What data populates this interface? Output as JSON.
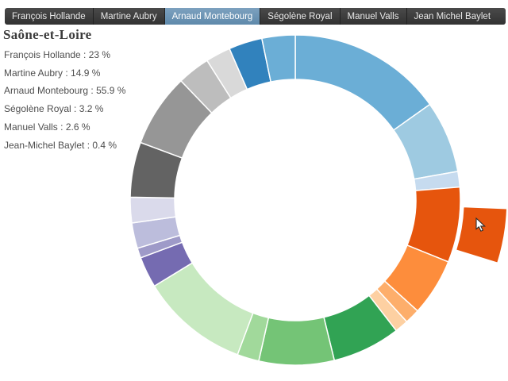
{
  "title": "Saône-et-Loire",
  "tabs": {
    "selected_index": 2,
    "items": [
      "François Hollande",
      "Martine Aubry",
      "Arnaud Montebourg",
      "Ségolène Royal",
      "Manuel Valls",
      "Jean Michel Baylet"
    ]
  },
  "stats": {
    "items": [
      {
        "name": "François Hollande",
        "value": "23 %"
      },
      {
        "name": "Martine Aubry",
        "value": "14.9 %"
      },
      {
        "name": "Arnaud Montebourg",
        "value": "55.9 %"
      },
      {
        "name": "Ségolène Royal",
        "value": "3.2 %"
      },
      {
        "name": "Manuel Valls",
        "value": "2.6 %"
      },
      {
        "name": "Jean-Michel Baylet",
        "value": "0.4 %"
      }
    ],
    "separator": " : "
  },
  "ui_colors": {
    "tabbar_bg": "#3a3a3a",
    "selected_tab_bg": "#6d93b2",
    "title_color": "#3b3b3b",
    "stats_text_color": "#4e4e4e"
  },
  "chart_data": {
    "type": "donut",
    "title": "Saône-et-Loire",
    "legend_position": "top-left",
    "palette_hint": "d3 category20c (4 shades per color family)",
    "series": [
      {
        "name": "François Hollande",
        "value": 23,
        "unit": "%",
        "color_family": "blue"
      },
      {
        "name": "Martine Aubry",
        "value": 14.9,
        "unit": "%",
        "color_family": "gray"
      },
      {
        "name": "Arnaud Montebourg",
        "value": 55.9,
        "unit": "%",
        "color_family": "orange"
      },
      {
        "name": "Ségolène Royal",
        "value": 3.2,
        "unit": "%",
        "color_family": "green"
      },
      {
        "name": "Manuel Valls",
        "value": 2.6,
        "unit": "%",
        "color_family": "purple"
      },
      {
        "name": "Jean-Michel Baylet",
        "value": 0.4,
        "unit": "%",
        "color_family": "none-visible"
      }
    ],
    "angles_note": "degrees clockwise from 12 o'clock",
    "ring_segments": [
      {
        "start_deg": 0.0,
        "end_deg": 54.6,
        "color": "#6baed6"
      },
      {
        "start_deg": 54.6,
        "end_deg": 80.0,
        "color": "#9ecae1"
      },
      {
        "start_deg": 80.0,
        "end_deg": 85.5,
        "color": "#c6dbef"
      },
      {
        "start_deg": 85.5,
        "end_deg": 112.0,
        "color": "#e6550d"
      },
      {
        "start_deg": 112.0,
        "end_deg": 132.2,
        "color": "#fd8d3c"
      },
      {
        "start_deg": 132.2,
        "end_deg": 137.5,
        "color": "#fdae6b"
      },
      {
        "start_deg": 137.5,
        "end_deg": 142.3,
        "color": "#fdd0a2"
      },
      {
        "start_deg": 142.3,
        "end_deg": 166.3,
        "color": "#31a354"
      },
      {
        "start_deg": 166.3,
        "end_deg": 192.8,
        "color": "#74c476"
      },
      {
        "start_deg": 192.8,
        "end_deg": 200.5,
        "color": "#a1d99b"
      },
      {
        "start_deg": 200.5,
        "end_deg": 238.6,
        "color": "#c7e9c0"
      },
      {
        "start_deg": 238.6,
        "end_deg": 249.5,
        "color": "#756bb1"
      },
      {
        "start_deg": 249.5,
        "end_deg": 253.0,
        "color": "#9e9ac8"
      },
      {
        "start_deg": 253.0,
        "end_deg": 262.0,
        "color": "#bcbddc"
      },
      {
        "start_deg": 262.0,
        "end_deg": 271.0,
        "color": "#dadaeb"
      },
      {
        "start_deg": 271.0,
        "end_deg": 290.4,
        "color": "#636363"
      },
      {
        "start_deg": 290.4,
        "end_deg": 316.2,
        "color": "#969696"
      },
      {
        "start_deg": 316.2,
        "end_deg": 327.7,
        "color": "#bdbdbd"
      },
      {
        "start_deg": 327.7,
        "end_deg": 336.5,
        "color": "#d9d9d9"
      },
      {
        "start_deg": 336.5,
        "end_deg": 348.3,
        "color": "#3182bd"
      },
      {
        "start_deg": 348.3,
        "end_deg": 360.0,
        "color": "#6baed6"
      }
    ],
    "highlighted_segment": {
      "start_deg": 92.3,
      "end_deg": 107.3,
      "color": "#e6550d",
      "exploded": true
    }
  }
}
